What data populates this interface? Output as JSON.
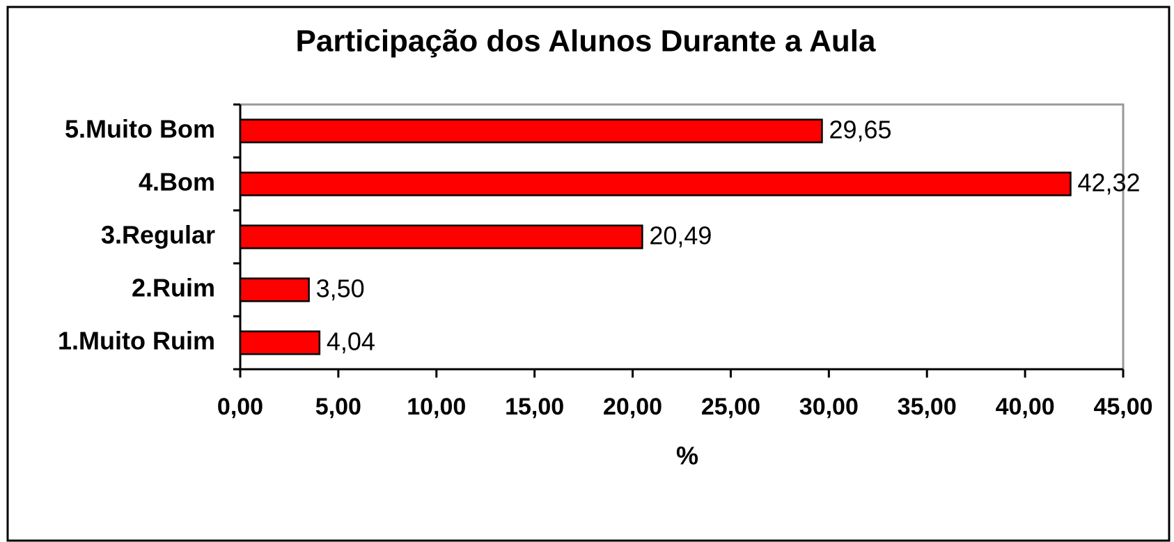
{
  "chart_data": {
    "type": "bar",
    "orientation": "horizontal",
    "title": "Participação dos Alunos Durante a Aula",
    "x_label": "%",
    "categories": [
      "1.Muito Ruim",
      "2.Ruim",
      "3.Regular",
      "4.Bom",
      "5.Muito Bom"
    ],
    "values": [
      4.04,
      3.5,
      20.49,
      42.32,
      29.65
    ],
    "value_labels": [
      "4,04",
      "3,50",
      "20,49",
      "42,32",
      "29,65"
    ],
    "color": "#ff0000",
    "xlim": [
      0,
      45
    ],
    "xticks": [
      {
        "value": 0,
        "label": "0,00"
      },
      {
        "value": 5,
        "label": "5,00"
      },
      {
        "value": 10,
        "label": "10,00"
      },
      {
        "value": 15,
        "label": "15,00"
      },
      {
        "value": 20,
        "label": "20,00"
      },
      {
        "value": 25,
        "label": "25,00"
      },
      {
        "value": 30,
        "label": "30,00"
      },
      {
        "value": 35,
        "label": "35,00"
      },
      {
        "value": 40,
        "label": "40,00"
      },
      {
        "value": 45,
        "label": "45,00"
      }
    ],
    "grid": false
  }
}
